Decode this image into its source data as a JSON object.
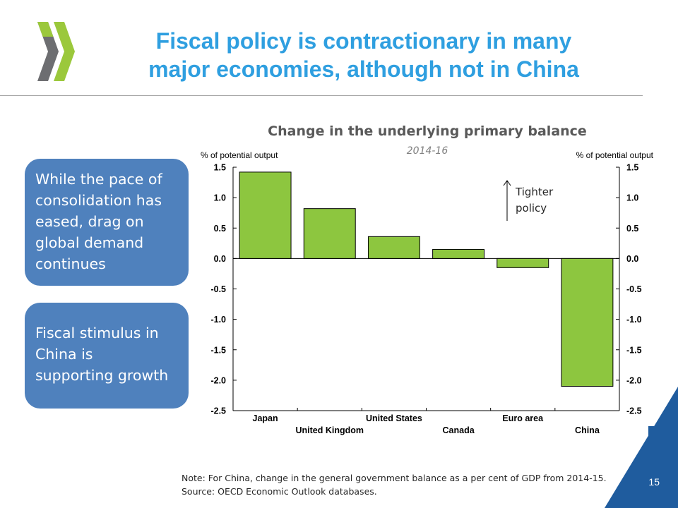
{
  "slide": {
    "title_line1": "Fiscal policy is contractionary in many",
    "title_line2": "major economies, although not in China",
    "page_number": "15",
    "logo_icon": "oecd-chevrons-logo-icon",
    "colors": {
      "title": "#2f9fe0",
      "callout": "#4f81bd",
      "corner": "#1f5c9e",
      "logo_green": "#9bc83c",
      "logo_grey": "#6d6e71"
    }
  },
  "callouts": [
    {
      "lines": [
        "While the pace of",
        "consolidation has",
        "eased, drag on",
        "global demand",
        "continues"
      ]
    },
    {
      "lines": [
        "Fiscal stimulus in",
        "China is",
        "supporting growth"
      ]
    }
  ],
  "chart_data": {
    "type": "bar",
    "title": "Change in the underlying primary balance",
    "subtitle": "2014-16",
    "ylabel_left": "% of potential output",
    "ylabel_right": "% of potential output",
    "categories": [
      "Japan",
      "United Kingdom",
      "United States",
      "Canada",
      "Euro area",
      "China"
    ],
    "values": [
      1.42,
      0.82,
      0.36,
      0.15,
      -0.15,
      -2.1
    ],
    "ylim": [
      -2.5,
      1.5
    ],
    "yticks": [
      "1.5",
      "1.0",
      "0.5",
      "0.0",
      "-0.5",
      "-1.0",
      "-1.5",
      "-2.0",
      "-2.5"
    ],
    "bar_color": "#8dc63f",
    "grid": false,
    "annotation": {
      "line1": "Tighter",
      "line2": "policy"
    }
  },
  "note": {
    "line1": "Note: For China, change in the general government balance as a per cent of GDP from 2014-15.",
    "line2": "Source: OECD Economic Outlook databases."
  }
}
